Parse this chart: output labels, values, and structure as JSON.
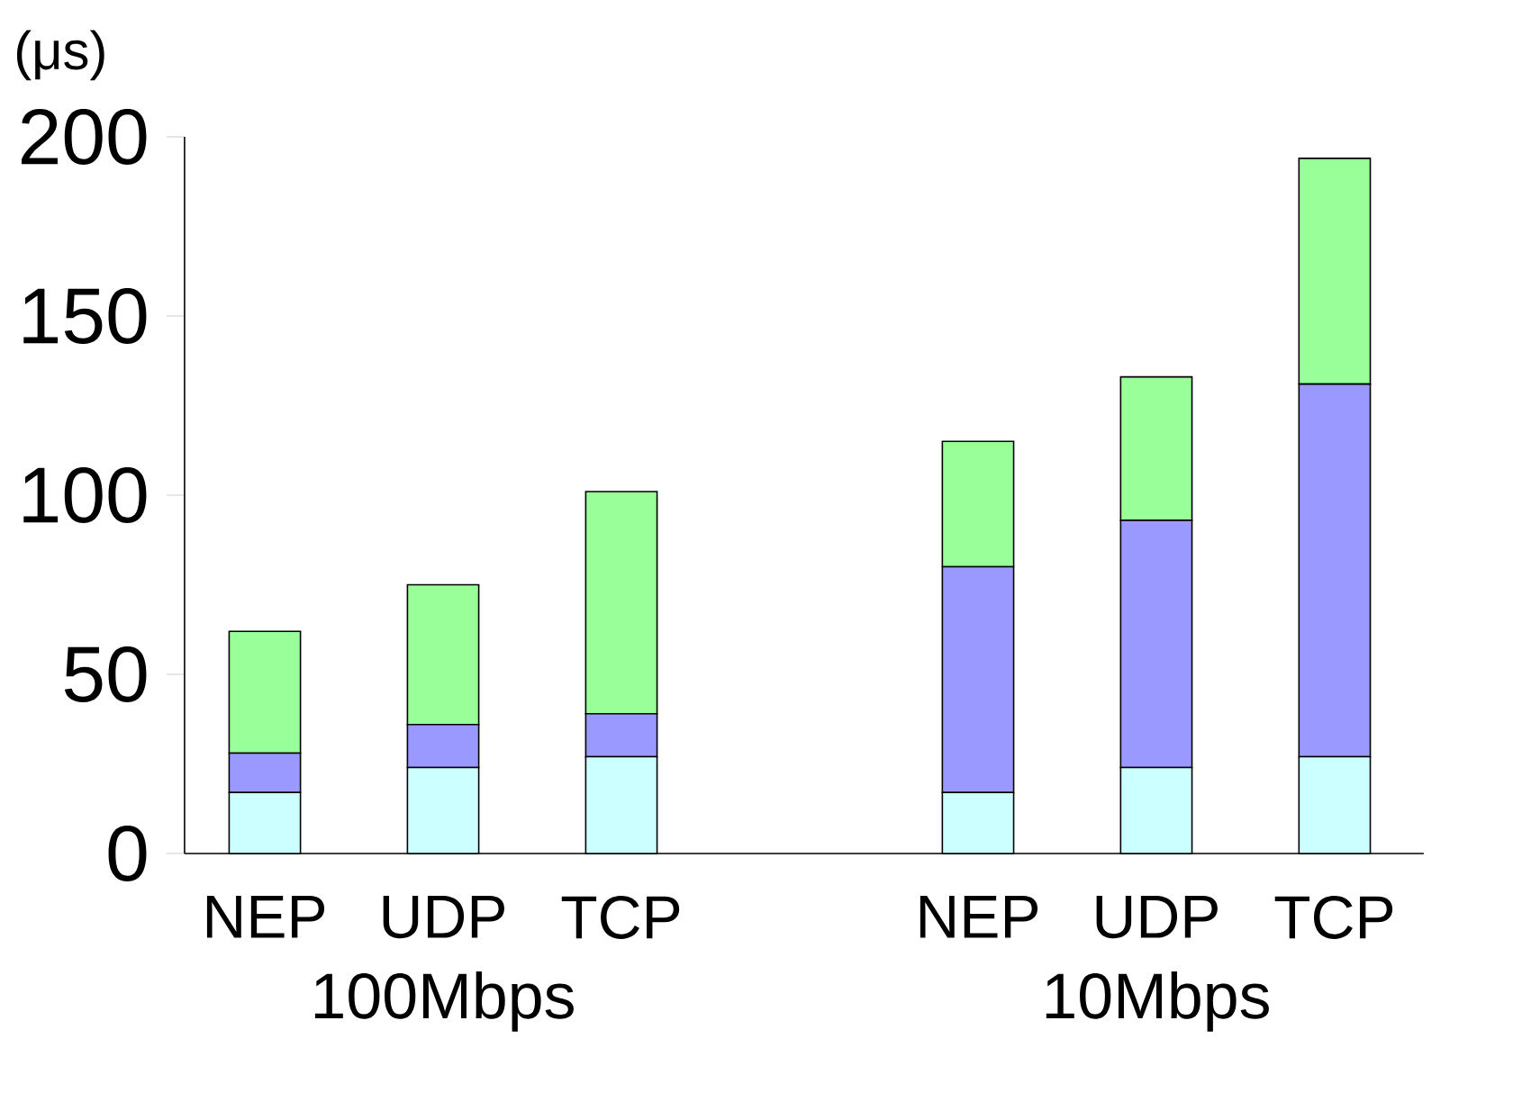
{
  "chart_data": {
    "type": "bar",
    "stacked": true,
    "ylabel": "(μs)",
    "categories": [
      "NEP",
      "UDP",
      "TCP",
      null,
      "NEP",
      "UDP",
      "TCP"
    ],
    "series": [
      {
        "color": "#ccffff",
        "values": [
          17,
          24,
          27,
          null,
          17,
          24,
          27
        ]
      },
      {
        "color": "#9999ff",
        "values": [
          11,
          12,
          12,
          null,
          63,
          69,
          104
        ]
      },
      {
        "color": "#99ff99",
        "values": [
          34,
          39,
          62,
          null,
          35,
          40,
          63
        ]
      }
    ],
    "ylim": [
      0,
      200
    ],
    "yticks": [
      0,
      50,
      100,
      150,
      200
    ],
    "annotations": [
      "100Mbps",
      "10Mbps"
    ]
  }
}
